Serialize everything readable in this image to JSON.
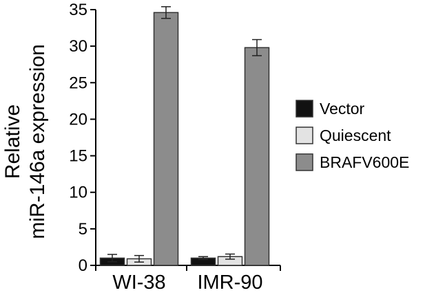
{
  "chart_data": {
    "type": "bar",
    "ylabel_line1": "Relative",
    "ylabel_line2": "miR-146a expression",
    "xlabel": "",
    "categories": [
      "WI-38",
      "IMR-90"
    ],
    "ylim": [
      0,
      35
    ],
    "yticks": [
      0,
      5,
      10,
      15,
      20,
      25,
      30,
      35
    ],
    "legend_position": "right",
    "series": [
      {
        "name": "Vector",
        "color": "#111111",
        "values": [
          1.0,
          1.0
        ],
        "errors": [
          0.5,
          0.2
        ]
      },
      {
        "name": "Quiescent",
        "color": "#e3e3e3",
        "values": [
          0.9,
          1.2
        ],
        "errors": [
          0.45,
          0.35
        ]
      },
      {
        "name": "BRAFV600E",
        "color": "#8c8c8c",
        "values": [
          34.6,
          29.8
        ],
        "errors": [
          0.8,
          1.1
        ]
      }
    ]
  }
}
